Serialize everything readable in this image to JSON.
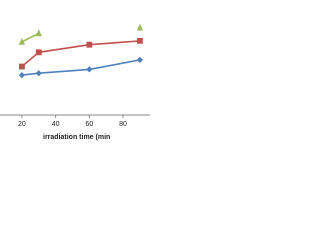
{
  "chart_data": {
    "type": "line",
    "x_label": "irradiation time (min",
    "x": [
      20,
      30,
      60,
      90
    ],
    "series": [
      {
        "color": "#9bbb59",
        "marker": "triangle",
        "values": [
          77,
          86,
          null,
          92
        ]
      },
      {
        "color": "#c0504d",
        "marker": "square",
        "values": [
          51,
          66,
          74,
          78
        ]
      },
      {
        "color": "#4f81bd",
        "marker": "diamond",
        "values": [
          42,
          44,
          48,
          58
        ]
      }
    ],
    "xlim": [
      7,
      96
    ],
    "xticks": [
      20,
      40,
      60,
      80
    ],
    "ylim": [
      0,
      100
    ],
    "grid": false
  }
}
